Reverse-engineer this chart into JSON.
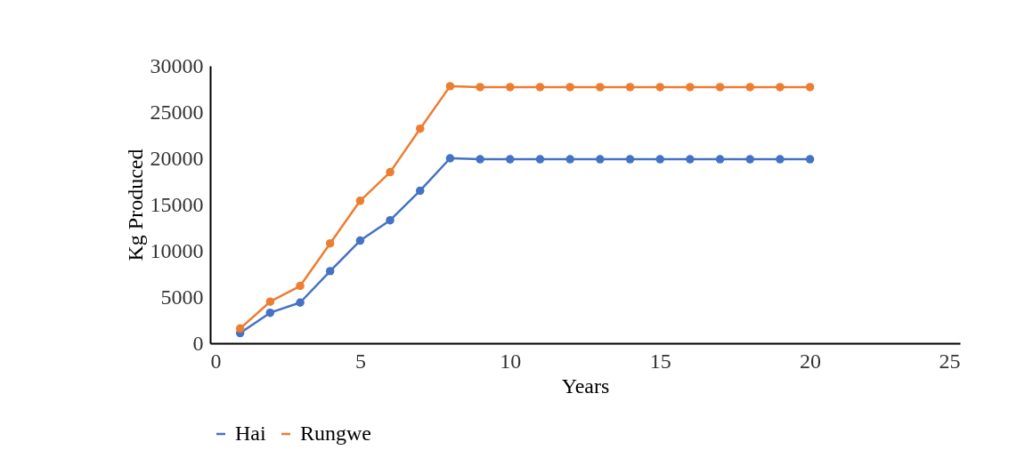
{
  "chart_data": {
    "type": "line",
    "xlabel": "Years",
    "ylabel": "Kg Produced",
    "x": [
      1,
      2,
      3,
      4,
      5,
      6,
      7,
      8,
      9,
      10,
      11,
      12,
      13,
      14,
      15,
      16,
      17,
      18,
      19,
      20
    ],
    "series": [
      {
        "name": "Hai",
        "color": "#4472c4",
        "values": [
          1100,
          3300,
          4400,
          7800,
          11100,
          13300,
          16500,
          20000,
          19900,
          19900,
          19900,
          19900,
          19900,
          19900,
          19900,
          19900,
          19900,
          19900,
          19900,
          19900
        ]
      },
      {
        "name": "Rungwe",
        "color": "#ed7d31",
        "values": [
          1600,
          4500,
          6200,
          10800,
          15400,
          18500,
          23200,
          27800,
          27700,
          27700,
          27700,
          27700,
          27700,
          27700,
          27700,
          27700,
          27700,
          27700,
          27700,
          27700
        ]
      }
    ],
    "xlim": [
      0,
      25
    ],
    "xticks": [
      0,
      5,
      10,
      15,
      20,
      25
    ],
    "ylim": [
      0,
      30000
    ],
    "yticks": [
      0,
      5000,
      10000,
      15000,
      20000,
      25000,
      30000
    ],
    "grid": false,
    "legend": "bottom",
    "marker": "circle",
    "line_style": "solid"
  }
}
